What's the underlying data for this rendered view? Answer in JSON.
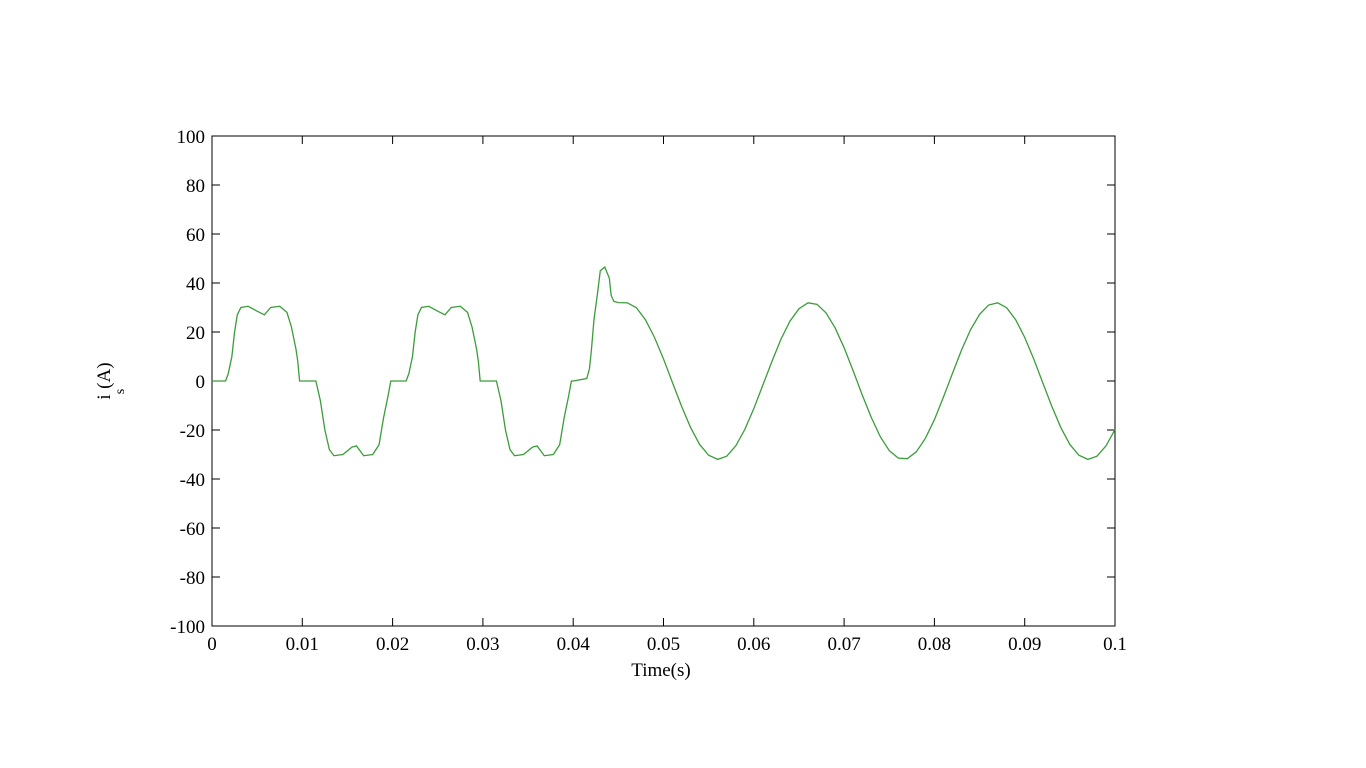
{
  "chart_data": {
    "type": "line",
    "xlabel": "Time(s)",
    "ylabel": {
      "main": "i",
      "sub": "s",
      "unit": "(A)"
    },
    "xlim": [
      0,
      0.1
    ],
    "xticks": [
      0,
      0.01,
      0.02,
      0.03,
      0.04,
      0.05,
      0.06,
      0.07,
      0.08,
      0.09,
      0.1
    ],
    "ylim": [
      -100,
      100
    ],
    "yticks": [
      -100,
      -80,
      -60,
      -40,
      -20,
      0,
      20,
      40,
      60,
      80,
      100
    ],
    "grid": false,
    "series": [
      {
        "color": "#3c9c3c",
        "x": [
          0,
          0.0015,
          0.0018,
          0.0022,
          0.0025,
          0.0028,
          0.0032,
          0.004,
          0.005,
          0.0058,
          0.0065,
          0.0075,
          0.0083,
          0.0088,
          0.0093,
          0.0095,
          0.0097,
          0.0115,
          0.012,
          0.0125,
          0.013,
          0.0135,
          0.0145,
          0.0155,
          0.016,
          0.0168,
          0.0178,
          0.0185,
          0.019,
          0.0195,
          0.0198,
          0.02,
          0.0215,
          0.0218,
          0.0222,
          0.0225,
          0.0228,
          0.0232,
          0.024,
          0.025,
          0.0258,
          0.0265,
          0.0275,
          0.0283,
          0.0288,
          0.0293,
          0.0295,
          0.0297,
          0.0315,
          0.032,
          0.0325,
          0.033,
          0.0335,
          0.0345,
          0.0355,
          0.036,
          0.0368,
          0.0378,
          0.0385,
          0.039,
          0.0395,
          0.0398,
          0.04,
          0.0415,
          0.0418,
          0.042,
          0.0423,
          0.0427,
          0.043,
          0.0435,
          0.044,
          0.0442,
          0.0445,
          0.045,
          0.046,
          0.047,
          0.048,
          0.049,
          0.05,
          0.051,
          0.052,
          0.053,
          0.054,
          0.055,
          0.056,
          0.057,
          0.058,
          0.059,
          0.06,
          0.061,
          0.062,
          0.063,
          0.064,
          0.065,
          0.066,
          0.067,
          0.068,
          0.069,
          0.07,
          0.071,
          0.072,
          0.073,
          0.074,
          0.075,
          0.076,
          0.077,
          0.078,
          0.079,
          0.08,
          0.081,
          0.082,
          0.083,
          0.084,
          0.085,
          0.086,
          0.087,
          0.088,
          0.089,
          0.09,
          0.091,
          0.092,
          0.093,
          0.094,
          0.095,
          0.096,
          0.097,
          0.098,
          0.099,
          0.1
        ],
        "values": [
          0,
          0,
          3,
          10,
          20,
          27,
          30,
          30.5,
          28.5,
          27,
          30,
          30.5,
          28,
          22,
          13,
          8,
          0,
          0,
          -8,
          -20,
          -28,
          -30.5,
          -30,
          -27,
          -26.5,
          -30.5,
          -30,
          -26,
          -15,
          -6,
          0,
          0,
          0,
          3,
          10,
          20,
          27,
          30,
          30.5,
          28.5,
          27,
          30,
          30.5,
          28,
          22,
          13,
          8,
          0,
          0,
          -8,
          -20,
          -28,
          -30.5,
          -30,
          -27,
          -26.5,
          -30.5,
          -30,
          -26,
          -15,
          -6,
          0,
          0,
          1,
          5,
          12,
          25,
          36,
          45,
          46.5,
          42,
          35,
          32.5,
          32,
          31.9,
          29.9,
          25.0,
          17.8,
          9.0,
          -0.7,
          -10.3,
          -19.0,
          -25.9,
          -30.3,
          -32.0,
          -30.7,
          -26.5,
          -19.8,
          -11.3,
          -1.7,
          7.9,
          17.0,
          24.4,
          29.5,
          31.9,
          31.3,
          27.8,
          21.7,
          13.6,
          4.2,
          -5.6,
          -14.8,
          -22.7,
          -28.4,
          -31.5,
          -31.7,
          -28.9,
          -23.4,
          -15.8,
          -6.6,
          3.1,
          12.6,
          20.9,
          27.2,
          31.0,
          31.9,
          29.9,
          25.0,
          17.8,
          9.0,
          -0.7,
          -10.3,
          -19.0,
          -25.9,
          -30.3,
          -32.0,
          -30.7,
          -26.5,
          -19.8
        ]
      }
    ]
  }
}
